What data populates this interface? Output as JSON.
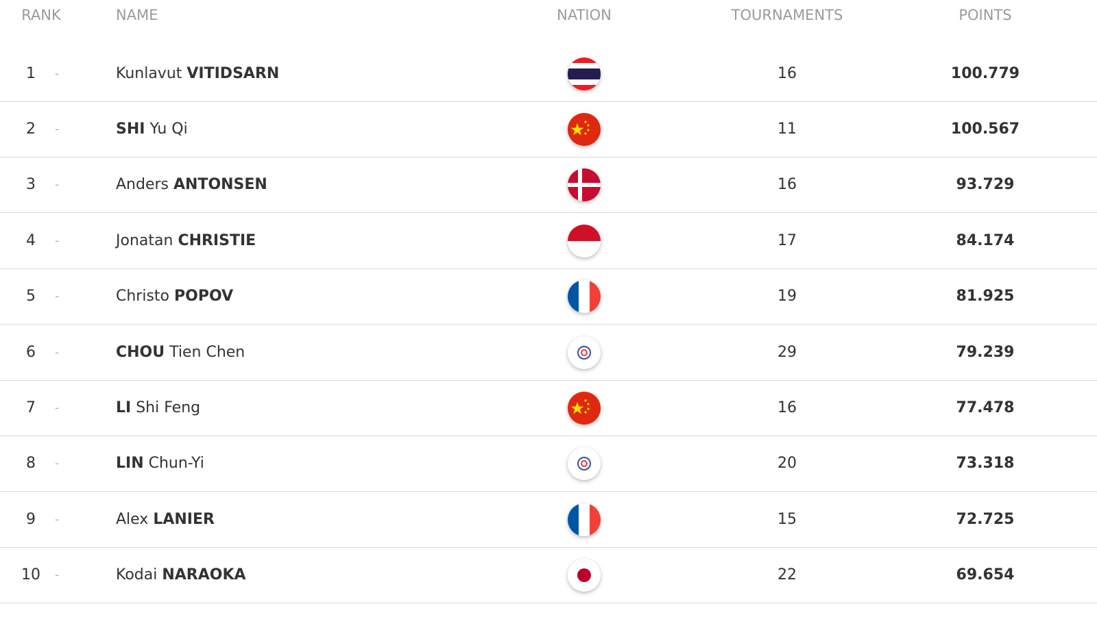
{
  "header": {
    "rank": "RANK",
    "name": "NAME",
    "nation": "NATION",
    "tournaments": "TOURNAMENTS",
    "points": "POINTS"
  },
  "rows": [
    {
      "rank": 1,
      "change": "-",
      "given": "Kunlavut",
      "family": "VITIDSARN",
      "tournaments": 16,
      "points": "100.779"
    },
    {
      "rank": 2,
      "change": "-",
      "given": "Yu Qi",
      "family": "SHI",
      "tournaments": 11,
      "points": "100.567"
    },
    {
      "rank": 3,
      "change": "-",
      "given": "Anders",
      "family": "ANTONSEN",
      "tournaments": 16,
      "points": "93.729"
    },
    {
      "rank": 4,
      "change": "-",
      "given": "Jonatan",
      "family": "CHRISTIE",
      "tournaments": 17,
      "points": "84.174"
    },
    {
      "rank": 5,
      "change": "-",
      "given": "Christo",
      "family": "POPOV",
      "tournaments": 19,
      "points": "81.925"
    },
    {
      "rank": 6,
      "change": "-",
      "given": "Tien Chen",
      "family": "CHOU",
      "tournaments": 29,
      "points": "79.239"
    },
    {
      "rank": 7,
      "change": "-",
      "given": "Shi Feng",
      "family": "LI",
      "tournaments": 16,
      "points": "77.478"
    },
    {
      "rank": 8,
      "change": "-",
      "given": "Chun-Yi",
      "family": "LIN",
      "tournaments": 20,
      "points": "73.318"
    },
    {
      "rank": 9,
      "change": "-",
      "given": "Alex",
      "family": "LANIER",
      "tournaments": 15,
      "points": "72.725"
    },
    {
      "rank": 10,
      "change": "-",
      "given": "Kodai",
      "family": "NARAOKA",
      "tournaments": 22,
      "points": "69.654"
    }
  ]
}
